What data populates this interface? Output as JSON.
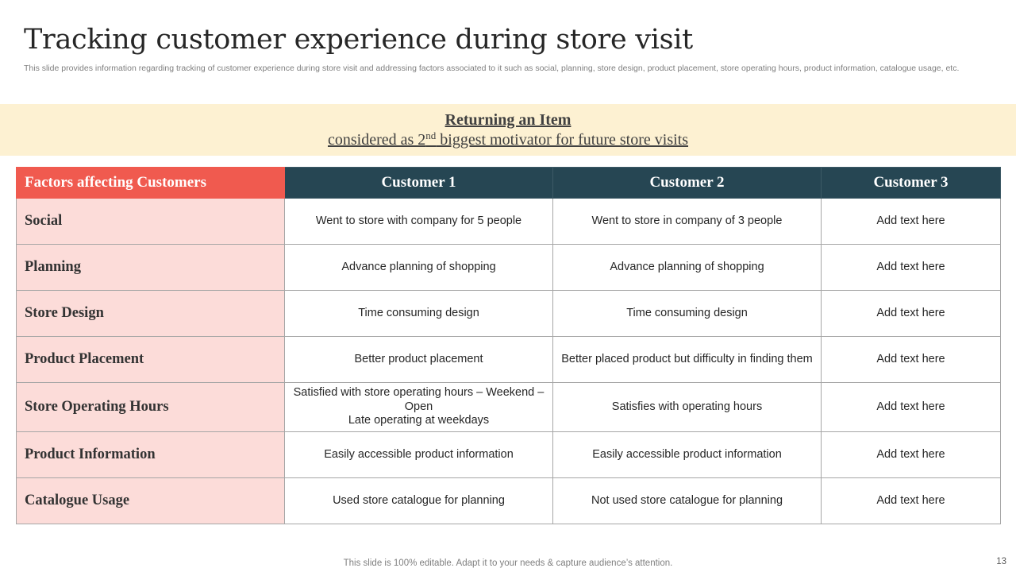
{
  "slide": {
    "title": "Tracking customer experience during store visit",
    "subtitle": "This slide provides information regarding tracking of customer experience during store visit and addressing factors associated to it such as social, planning, store design, product placement, store operating hours, product information, catalogue usage, etc.",
    "footer": "This slide is 100% editable. Adapt it to your needs & capture audience’s attention.",
    "page_number": "13"
  },
  "banner": {
    "heading": "Returning an Item",
    "line_prefix": "considered as 2",
    "line_sup": "nd",
    "line_suffix": " biggest motivator for future store visits"
  },
  "table": {
    "headers": [
      "Factors affecting Customers",
      "Customer 1",
      "Customer 2",
      "Customer 3"
    ],
    "rows": [
      {
        "factor": "Social",
        "c1": "Went to store with company for 5 people",
        "c2": "Went to store in company of 3 people",
        "c3": "Add text here"
      },
      {
        "factor": "Planning",
        "c1": "Advance planning of shopping",
        "c2": "Advance planning of shopping",
        "c3": "Add text here"
      },
      {
        "factor": "Store Design",
        "c1": "Time consuming design",
        "c2": "Time consuming design",
        "c3": "Add text here"
      },
      {
        "factor": "Product Placement",
        "c1": "Better product placement",
        "c2": "Better placed product but difficulty in finding them",
        "c3": "Add text here"
      },
      {
        "factor": "Store Operating Hours",
        "c1": "Satisfied with store operating hours – Weekend – Open\nLate operating at weekdays",
        "c2": "Satisfies with operating hours",
        "c3": "Add text here"
      },
      {
        "factor": "Product Information",
        "c1": "Easily accessible product information",
        "c2": "Easily accessible product information",
        "c3": "Add text here"
      },
      {
        "factor": "Catalogue Usage",
        "c1": "Used store catalogue for planning",
        "c2": "Not used store catalogue for planning",
        "c3": "Add text here"
      }
    ]
  },
  "colors": {
    "header_dark": "#264653",
    "header_accent": "#f05a4f",
    "factor_cell_bg": "#fcdcd9",
    "banner_bg": "#fdf1d2"
  }
}
